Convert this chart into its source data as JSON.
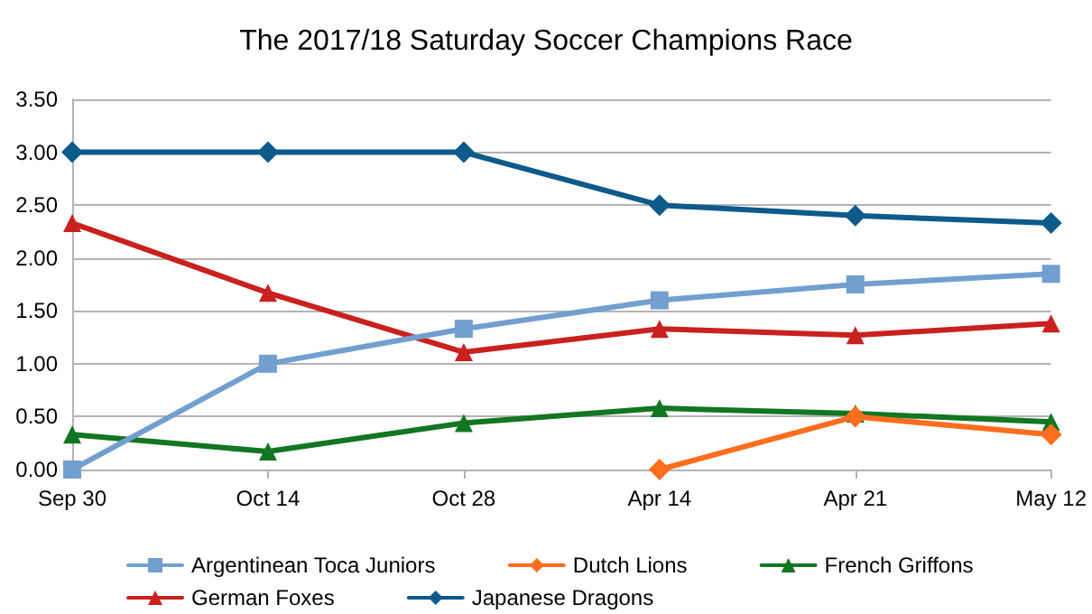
{
  "chart_data": {
    "type": "line",
    "title": "The 2017/18 Saturday Soccer Champions Race",
    "categories": [
      "Sep 30",
      "Oct 14",
      "Oct 28",
      "Apr 14",
      "Apr 21",
      "May 12"
    ],
    "series": [
      {
        "name": "Argentinean Toca Juniors",
        "color": "#729fcf",
        "marker": "square",
        "values": [
          0,
          1.0,
          1.33,
          1.6,
          1.75,
          1.85
        ]
      },
      {
        "name": "Dutch Lions",
        "color": "#ff6d1e",
        "marker": "diamond",
        "values": [
          null,
          null,
          null,
          0,
          0.5,
          0.33
        ]
      },
      {
        "name": "French Griffons",
        "color": "#127622",
        "marker": "triangle",
        "values": [
          0.33,
          0.17,
          0.44,
          0.58,
          0.53,
          0.45
        ]
      },
      {
        "name": "German Foxes",
        "color": "#c9211e",
        "marker": "triangle",
        "values": [
          2.33,
          1.67,
          1.11,
          1.33,
          1.27,
          1.38
        ]
      },
      {
        "name": "Japanese Dragons",
        "color": "#0d5a8b",
        "marker": "diamond",
        "values": [
          3,
          3,
          3,
          2.5,
          2.4,
          2.33
        ]
      }
    ],
    "ylim": [
      0,
      3.5
    ],
    "yticks": [
      {
        "value": 0,
        "label": "0.00"
      },
      {
        "value": 0.5,
        "label": "0.50"
      },
      {
        "value": 1,
        "label": "1.00"
      },
      {
        "value": 1.5,
        "label": "1.50"
      },
      {
        "value": 2,
        "label": "2.00"
      },
      {
        "value": 2.5,
        "label": "2.50"
      },
      {
        "value": 3,
        "label": "3.00"
      },
      {
        "value": 3.5,
        "label": "3.50"
      }
    ],
    "grid": "y",
    "legend": "bottom",
    "line_style": "solid"
  }
}
